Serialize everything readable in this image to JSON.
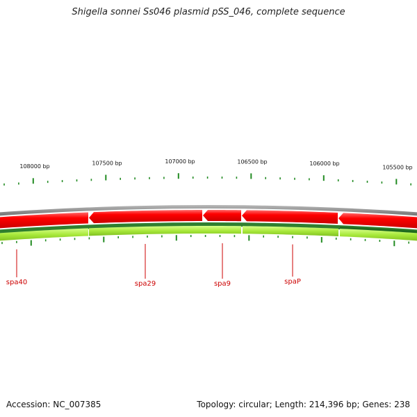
{
  "title": "Shigella sonnei Ss046 plasmid pSS_046, complete sequence",
  "scale_labels": [
    "108000 bp",
    "107500 bp",
    "107000 bp",
    "106500 bp",
    "106000 bp",
    "105500 bp"
  ],
  "genes": [
    {
      "name": "spa40"
    },
    {
      "name": "spa29"
    },
    {
      "name": "spa9"
    },
    {
      "name": "spaP"
    }
  ],
  "colors": {
    "backbone": "#8c8c8c",
    "cds_reverse": "#ee0000",
    "cds_forward": "#a8e83a",
    "gene_band_dark": "#2f7f2f",
    "ticks": "#228b22",
    "gene_label": "#cc0000"
  },
  "footer": {
    "accession": "Accession: NC_007385",
    "summary": "Topology: circular; Length: 214,396 bp; Genes: 238"
  }
}
